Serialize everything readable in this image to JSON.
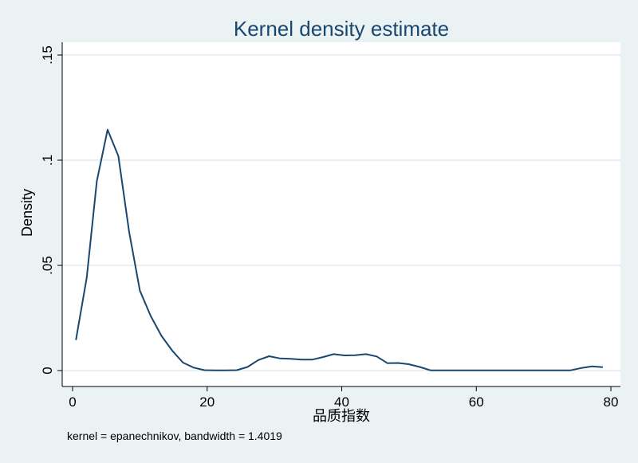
{
  "chart_data": {
    "type": "line",
    "title": "Kernel density estimate",
    "xlabel": "品质指数",
    "ylabel": "Density",
    "note": "kernel = epanechnikov, bandwidth = 1.4019",
    "xlim": [
      0,
      80
    ],
    "ylim": [
      0,
      0.15
    ],
    "x_ticks": [
      0,
      20,
      40,
      60,
      80
    ],
    "x_tick_labels": [
      "0",
      "20",
      "40",
      "60",
      "80"
    ],
    "y_ticks": [
      0,
      0.05,
      0.1,
      0.15
    ],
    "y_tick_labels": [
      "0",
      ".05",
      ".1",
      ".15"
    ],
    "grid": "horizontal",
    "colors": {
      "line": "#1a476f",
      "grid": "#d0e0e4",
      "plot_bg": "#ffffff",
      "page_bg": "#eaf2f3"
    },
    "series": [
      {
        "x": [
          0.5,
          2.1,
          3.6,
          5.2,
          6.8,
          8.4,
          10.0,
          11.6,
          13.2,
          14.8,
          16.4,
          18.0,
          19.6,
          21.2,
          22.8,
          24.4,
          26.0,
          27.6,
          29.2,
          30.8,
          32.4,
          34.0,
          35.6,
          37.2,
          38.8,
          40.4,
          42.0,
          43.6,
          45.2,
          46.8,
          48.4,
          50.0,
          51.6,
          53.2,
          54.8,
          56.4,
          58.0,
          59.6,
          61.2,
          62.8,
          64.4,
          66.0,
          67.6,
          69.2,
          70.8,
          72.4,
          74.0,
          75.6,
          77.2,
          78.8
        ],
        "y": [
          0.0145,
          0.044,
          0.09,
          0.1145,
          0.102,
          0.066,
          0.038,
          0.026,
          0.0165,
          0.0095,
          0.0038,
          0.0014,
          0.0002,
          0.0001,
          0.0001,
          0.0002,
          0.0017,
          0.005,
          0.0068,
          0.0058,
          0.0056,
          0.0052,
          0.0052,
          0.0064,
          0.0078,
          0.0072,
          0.0073,
          0.0078,
          0.0067,
          0.0035,
          0.0036,
          0.003,
          0.0017,
          0.0001,
          0.0001,
          0.0001,
          0.0001,
          0.0001,
          0.0001,
          0.0001,
          0.0001,
          0.0001,
          0.0001,
          0.0001,
          0.0001,
          0.0001,
          0.0001,
          0.0012,
          0.002,
          0.0016
        ]
      }
    ]
  }
}
